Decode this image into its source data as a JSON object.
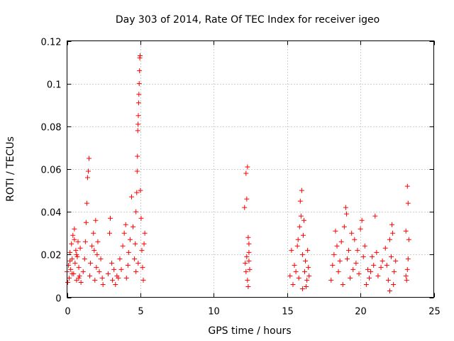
{
  "chart_data": {
    "type": "scatter",
    "title": "Day 303 of 2014, Rate Of TEC Index for receiver igeo",
    "xlabel": "GPS time / hours",
    "ylabel": "ROTI / TECUs",
    "xlim": [
      0,
      25
    ],
    "ylim": [
      0,
      0.12
    ],
    "xticks": [
      0,
      5,
      10,
      15,
      20,
      25
    ],
    "yticks": [
      0,
      0.02,
      0.04,
      0.06,
      0.08,
      0.1,
      0.12
    ],
    "xtick_labels": [
      "0",
      "5",
      "10",
      "15",
      "20",
      "25"
    ],
    "ytick_labels": [
      "0",
      "0.02",
      "0.04",
      "0.06",
      "0.08",
      "0.1",
      "0.12"
    ],
    "grid": true,
    "marker": "+",
    "color": "#ff0000",
    "series": [
      {
        "name": "ROTI",
        "points": [
          [
            0.0,
            0.012
          ],
          [
            0.05,
            0.007
          ],
          [
            0.1,
            0.015
          ],
          [
            0.15,
            0.009
          ],
          [
            0.2,
            0.021
          ],
          [
            0.25,
            0.013
          ],
          [
            0.3,
            0.025
          ],
          [
            0.35,
            0.018
          ],
          [
            0.4,
            0.029
          ],
          [
            0.45,
            0.011
          ],
          [
            0.5,
            0.032
          ],
          [
            0.55,
            0.016
          ],
          [
            0.6,
            0.022
          ],
          [
            0.65,
            0.008
          ],
          [
            0.7,
            0.019
          ],
          [
            0.75,
            0.026
          ],
          [
            0.8,
            0.014
          ],
          [
            0.85,
            0.01
          ],
          [
            0.9,
            0.023
          ],
          [
            0.95,
            0.007
          ],
          [
            0.2,
            0.017
          ],
          [
            0.35,
            0.011
          ],
          [
            0.5,
            0.027
          ],
          [
            0.65,
            0.02
          ],
          [
            0.8,
            0.009
          ],
          [
            1.1,
            0.012
          ],
          [
            1.2,
            0.018
          ],
          [
            1.25,
            0.026
          ],
          [
            1.3,
            0.035
          ],
          [
            1.35,
            0.044
          ],
          [
            1.4,
            0.056
          ],
          [
            1.45,
            0.059
          ],
          [
            1.5,
            0.065
          ],
          [
            1.55,
            0.01
          ],
          [
            1.6,
            0.016
          ],
          [
            1.7,
            0.024
          ],
          [
            1.8,
            0.03
          ],
          [
            1.9,
            0.008
          ],
          [
            1.95,
            0.036
          ],
          [
            2.0,
            0.014
          ],
          [
            2.05,
            0.02
          ],
          [
            2.1,
            0.026
          ],
          [
            2.2,
            0.012
          ],
          [
            2.3,
            0.018
          ],
          [
            2.4,
            0.009
          ],
          [
            2.45,
            0.006
          ],
          [
            1.85,
            0.022
          ],
          [
            2.8,
            0.011
          ],
          [
            2.9,
            0.03
          ],
          [
            2.95,
            0.037
          ],
          [
            3.05,
            0.016
          ],
          [
            3.1,
            0.008
          ],
          [
            3.2,
            0.013
          ],
          [
            3.3,
            0.006
          ],
          [
            3.4,
            0.01
          ],
          [
            3.5,
            0.009
          ],
          [
            3.6,
            0.018
          ],
          [
            3.7,
            0.013
          ],
          [
            3.8,
            0.024
          ],
          [
            3.9,
            0.03
          ],
          [
            4.0,
            0.034
          ],
          [
            4.05,
            0.009
          ],
          [
            4.15,
            0.015
          ],
          [
            4.2,
            0.021
          ],
          [
            4.3,
            0.027
          ],
          [
            4.4,
            0.047
          ],
          [
            4.5,
            0.033
          ],
          [
            4.6,
            0.018
          ],
          [
            4.65,
            0.025
          ],
          [
            4.7,
            0.04
          ],
          [
            4.75,
            0.049
          ],
          [
            4.78,
            0.059
          ],
          [
            4.8,
            0.066
          ],
          [
            4.82,
            0.078
          ],
          [
            4.84,
            0.081
          ],
          [
            4.86,
            0.085
          ],
          [
            4.88,
            0.091
          ],
          [
            4.9,
            0.095
          ],
          [
            4.92,
            0.1
          ],
          [
            4.94,
            0.106
          ],
          [
            4.96,
            0.112
          ],
          [
            4.98,
            0.113
          ],
          [
            5.0,
            0.05
          ],
          [
            5.05,
            0.037
          ],
          [
            5.1,
            0.022
          ],
          [
            5.15,
            0.014
          ],
          [
            5.2,
            0.008
          ],
          [
            5.25,
            0.025
          ],
          [
            5.3,
            0.03
          ],
          [
            4.7,
            0.012
          ],
          [
            4.85,
            0.016
          ],
          [
            12.1,
            0.042
          ],
          [
            12.2,
            0.058
          ],
          [
            12.25,
            0.046
          ],
          [
            12.3,
            0.061
          ],
          [
            12.35,
            0.028
          ],
          [
            12.4,
            0.021
          ],
          [
            12.15,
            0.016
          ],
          [
            12.2,
            0.012
          ],
          [
            12.3,
            0.008
          ],
          [
            12.4,
            0.017
          ],
          [
            12.45,
            0.013
          ],
          [
            12.35,
            0.005
          ],
          [
            12.25,
            0.019
          ],
          [
            12.4,
            0.025
          ],
          [
            15.2,
            0.01
          ],
          [
            15.3,
            0.022
          ],
          [
            15.4,
            0.006
          ],
          [
            15.5,
            0.015
          ],
          [
            15.6,
            0.012
          ],
          [
            15.7,
            0.024
          ],
          [
            15.8,
            0.009
          ],
          [
            15.85,
            0.033
          ],
          [
            15.9,
            0.045
          ],
          [
            15.95,
            0.038
          ],
          [
            16.0,
            0.05
          ],
          [
            16.05,
            0.02
          ],
          [
            16.1,
            0.029
          ],
          [
            16.15,
            0.036
          ],
          [
            16.2,
            0.012
          ],
          [
            16.25,
            0.017
          ],
          [
            16.3,
            0.005
          ],
          [
            16.35,
            0.008
          ],
          [
            16.4,
            0.022
          ],
          [
            16.45,
            0.014
          ],
          [
            16.5,
            0.01
          ],
          [
            15.75,
            0.027
          ],
          [
            16.05,
            0.004
          ],
          [
            18.0,
            0.008
          ],
          [
            18.1,
            0.015
          ],
          [
            18.2,
            0.02
          ],
          [
            18.3,
            0.031
          ],
          [
            18.4,
            0.024
          ],
          [
            18.5,
            0.012
          ],
          [
            18.6,
            0.017
          ],
          [
            18.7,
            0.026
          ],
          [
            18.8,
            0.006
          ],
          [
            18.9,
            0.033
          ],
          [
            19.0,
            0.042
          ],
          [
            19.05,
            0.039
          ],
          [
            19.1,
            0.018
          ],
          [
            19.2,
            0.022
          ],
          [
            19.3,
            0.009
          ],
          [
            19.4,
            0.03
          ],
          [
            19.5,
            0.013
          ],
          [
            19.6,
            0.027
          ],
          [
            19.7,
            0.016
          ],
          [
            19.8,
            0.022
          ],
          [
            19.9,
            0.011
          ],
          [
            20.0,
            0.032
          ],
          [
            20.1,
            0.036
          ],
          [
            20.2,
            0.019
          ],
          [
            20.3,
            0.024
          ],
          [
            20.4,
            0.006
          ],
          [
            20.5,
            0.013
          ],
          [
            20.6,
            0.009
          ],
          [
            20.7,
            0.012
          ],
          [
            20.8,
            0.019
          ],
          [
            20.9,
            0.015
          ],
          [
            21.0,
            0.038
          ],
          [
            21.1,
            0.021
          ],
          [
            21.2,
            0.01
          ],
          [
            21.4,
            0.014
          ],
          [
            21.5,
            0.017
          ],
          [
            21.7,
            0.023
          ],
          [
            21.8,
            0.015
          ],
          [
            21.9,
            0.008
          ],
          [
            22.0,
            0.027
          ],
          [
            22.1,
            0.019
          ],
          [
            22.15,
            0.034
          ],
          [
            22.2,
            0.03
          ],
          [
            22.3,
            0.012
          ],
          [
            22.4,
            0.017
          ],
          [
            22.0,
            0.003
          ],
          [
            22.25,
            0.006
          ],
          [
            23.1,
            0.01
          ],
          [
            23.15,
            0.008
          ],
          [
            23.2,
            0.013
          ],
          [
            23.2,
            0.052
          ],
          [
            23.25,
            0.044
          ],
          [
            23.3,
            0.027
          ],
          [
            23.1,
            0.031
          ],
          [
            23.25,
            0.018
          ]
        ]
      }
    ]
  }
}
